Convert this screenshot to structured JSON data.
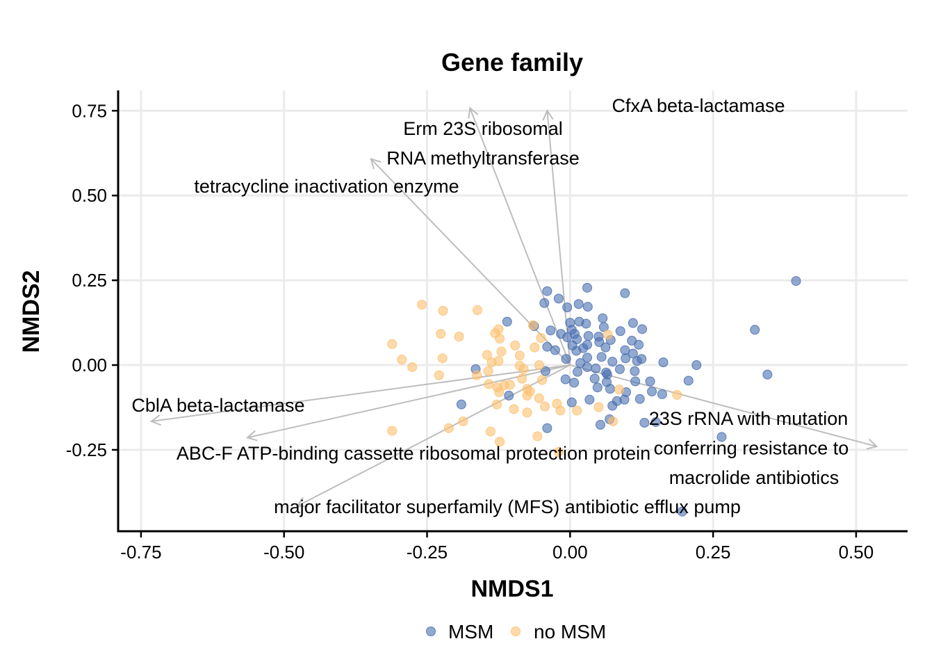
{
  "chart_data": {
    "type": "scatter",
    "title": "Gene family",
    "xlabel": "NMDS1",
    "ylabel": "NMDS2",
    "xlim": [
      -0.79,
      0.59
    ],
    "ylim": [
      -0.49,
      0.81
    ],
    "xticks": [
      -0.75,
      -0.5,
      -0.25,
      0.0,
      0.25,
      0.5
    ],
    "xtick_labels": [
      "-0.75",
      "-0.50",
      "-0.25",
      "0.00",
      "0.25",
      "0.50"
    ],
    "yticks": [
      -0.25,
      0.0,
      0.25,
      0.5,
      0.75
    ],
    "ytick_labels": [
      "-0.25",
      "0.00",
      "0.25",
      "0.50",
      "0.75"
    ],
    "grid": true,
    "legend_position": "bottom",
    "colors": {
      "MSM": "#4a6fb0",
      "no MSM": "#fdbf6f",
      "arrow": "#bdbdbd",
      "grid": "#ebebeb"
    },
    "series": [
      {
        "name": "MSM",
        "color": "#4a6fb0",
        "points": [
          [
            0.395,
            0.248
          ],
          [
            0.323,
            0.104
          ],
          [
            0.345,
            -0.028
          ],
          [
            0.265,
            -0.212
          ],
          [
            0.196,
            -0.432
          ],
          [
            -0.04,
            0.218
          ],
          [
            0.03,
            0.228
          ],
          [
            0.096,
            0.212
          ],
          [
            -0.045,
            0.183
          ],
          [
            -0.02,
            0.196
          ],
          [
            -0.005,
            0.17
          ],
          [
            0.015,
            0.18
          ],
          [
            0.031,
            0.172
          ],
          [
            0.057,
            0.138
          ],
          [
            0.11,
            0.124
          ],
          [
            -0.11,
            0.128
          ],
          [
            -0.063,
            0.115
          ],
          [
            0.0,
            0.125
          ],
          [
            0.016,
            0.128
          ],
          [
            0.028,
            0.122
          ],
          [
            0.059,
            0.112
          ],
          [
            0.088,
            0.1
          ],
          [
            0.126,
            0.106
          ],
          [
            -0.034,
            0.102
          ],
          [
            -0.016,
            0.092
          ],
          [
            -0.005,
            0.082
          ],
          [
            0.003,
            0.104
          ],
          [
            0.008,
            0.092
          ],
          [
            0.012,
            0.076
          ],
          [
            0.032,
            0.086
          ],
          [
            0.05,
            0.084
          ],
          [
            0.071,
            0.074
          ],
          [
            0.108,
            0.072
          ],
          [
            -0.04,
            0.054
          ],
          [
            -0.026,
            0.044
          ],
          [
            0.004,
            0.058
          ],
          [
            0.011,
            0.042
          ],
          [
            0.023,
            0.05
          ],
          [
            0.03,
            0.06
          ],
          [
            0.051,
            0.068
          ],
          [
            0.062,
            0.052
          ],
          [
            0.096,
            0.044
          ],
          [
            0.12,
            0.06
          ],
          [
            -0.007,
            0.018
          ],
          [
            0.018,
            0.006
          ],
          [
            0.03,
            0.022
          ],
          [
            0.055,
            0.024
          ],
          [
            0.074,
            0.01
          ],
          [
            0.097,
            0.02
          ],
          [
            0.11,
            0.034
          ],
          [
            0.117,
            0.012
          ],
          [
            0.125,
            0.018
          ],
          [
            0.163,
            0.008
          ],
          [
            0.221,
            0.0
          ],
          [
            -0.165,
            -0.012
          ],
          [
            -0.043,
            -0.018
          ],
          [
            0.013,
            -0.02
          ],
          [
            0.03,
            -0.006
          ],
          [
            0.045,
            -0.01
          ],
          [
            0.063,
            -0.022
          ],
          [
            0.087,
            -0.012
          ],
          [
            0.113,
            -0.018
          ],
          [
            -0.008,
            -0.042
          ],
          [
            0.007,
            -0.052
          ],
          [
            0.043,
            -0.04
          ],
          [
            0.065,
            -0.028
          ],
          [
            0.064,
            -0.05
          ],
          [
            0.114,
            -0.048
          ],
          [
            0.14,
            -0.048
          ],
          [
            0.207,
            -0.046
          ],
          [
            -0.107,
            -0.09
          ],
          [
            0.048,
            -0.066
          ],
          [
            0.07,
            -0.07
          ],
          [
            0.098,
            -0.08
          ],
          [
            0.122,
            -0.1
          ],
          [
            0.143,
            -0.078
          ],
          [
            0.161,
            -0.086
          ],
          [
            0.034,
            -0.102
          ],
          [
            0.074,
            -0.12
          ],
          [
            0.003,
            -0.11
          ],
          [
            -0.19,
            -0.116
          ],
          [
            -0.04,
            -0.186
          ],
          [
            0.053,
            -0.176
          ],
          [
            0.069,
            -0.16
          ],
          [
            0.13,
            -0.17
          ],
          [
            0.15,
            -0.168
          ],
          [
            0.082,
            -0.106
          ],
          [
            0.095,
            -0.102
          ]
        ]
      },
      {
        "name": "no MSM",
        "color": "#fdbf6f",
        "points": [
          [
            -0.259,
            0.178
          ],
          [
            -0.222,
            0.16
          ],
          [
            -0.162,
            0.162
          ],
          [
            -0.065,
            0.118
          ],
          [
            -0.125,
            0.106
          ],
          [
            -0.131,
            0.094
          ],
          [
            -0.226,
            0.092
          ],
          [
            -0.194,
            0.084
          ],
          [
            -0.123,
            0.078
          ],
          [
            -0.051,
            0.08
          ],
          [
            0.066,
            0.09
          ],
          [
            -0.311,
            0.062
          ],
          [
            -0.145,
            0.03
          ],
          [
            -0.096,
            0.058
          ],
          [
            -0.12,
            0.04
          ],
          [
            -0.294,
            0.016
          ],
          [
            -0.223,
            0.02
          ],
          [
            -0.088,
            0.028
          ],
          [
            -0.062,
            0.052
          ],
          [
            -0.276,
            -0.006
          ],
          [
            -0.137,
            0.008
          ],
          [
            -0.125,
            0.012
          ],
          [
            -0.143,
            -0.018
          ],
          [
            -0.088,
            -0.002
          ],
          [
            -0.054,
            0.0
          ],
          [
            -0.081,
            -0.012
          ],
          [
            -0.229,
            -0.03
          ],
          [
            -0.163,
            -0.03
          ],
          [
            -0.142,
            -0.056
          ],
          [
            -0.127,
            -0.066
          ],
          [
            -0.115,
            -0.06
          ],
          [
            -0.084,
            -0.04
          ],
          [
            -0.049,
            -0.044
          ],
          [
            -0.105,
            -0.058
          ],
          [
            -0.075,
            -0.07
          ],
          [
            -0.07,
            -0.078
          ],
          [
            -0.075,
            -0.09
          ],
          [
            -0.054,
            -0.098
          ],
          [
            -0.124,
            -0.08
          ],
          [
            -0.128,
            -0.116
          ],
          [
            -0.098,
            -0.13
          ],
          [
            -0.075,
            -0.14
          ],
          [
            -0.044,
            -0.122
          ],
          [
            -0.023,
            -0.114
          ],
          [
            -0.017,
            -0.134
          ],
          [
            0.012,
            -0.134
          ],
          [
            0.05,
            -0.124
          ],
          [
            -0.212,
            -0.186
          ],
          [
            -0.187,
            -0.166
          ],
          [
            -0.139,
            -0.196
          ],
          [
            -0.057,
            -0.21
          ],
          [
            -0.123,
            -0.226
          ],
          [
            -0.02,
            -0.256
          ],
          [
            0.075,
            -0.166
          ],
          [
            -0.311,
            -0.194
          ],
          [
            0.187,
            -0.088
          ],
          [
            0.086,
            -0.072
          ]
        ]
      }
    ],
    "vectors": [
      {
        "label_lines": [
          "CfxA beta-lactamase"
        ],
        "xend": -0.04,
        "yend": 0.75
      },
      {
        "label_lines": [
          "Erm 23S ribosomal",
          "RNA methyltransferase"
        ],
        "xend": -0.175,
        "yend": 0.758
      },
      {
        "label_lines": [
          "tetracycline inactivation enzyme"
        ],
        "xend": -0.348,
        "yend": 0.608
      },
      {
        "label_lines": [
          "CblA beta-lactamase"
        ],
        "xend": -0.732,
        "yend": -0.166
      },
      {
        "label_lines": [
          "ABC-F ATP-binding cassette ribosomal protection protein"
        ],
        "xend": -0.564,
        "yend": -0.214
      },
      {
        "label_lines": [
          "major facilitator superfamily (MFS) antibiotic efflux pump"
        ],
        "xend": -0.477,
        "yend": -0.416
      },
      {
        "label_lines": [
          "23S rRNA with mutation",
          "conferring resistance to",
          "macrolide antibiotics"
        ],
        "xend": 0.536,
        "yend": -0.24
      }
    ],
    "legend": [
      "MSM",
      "no MSM"
    ]
  }
}
